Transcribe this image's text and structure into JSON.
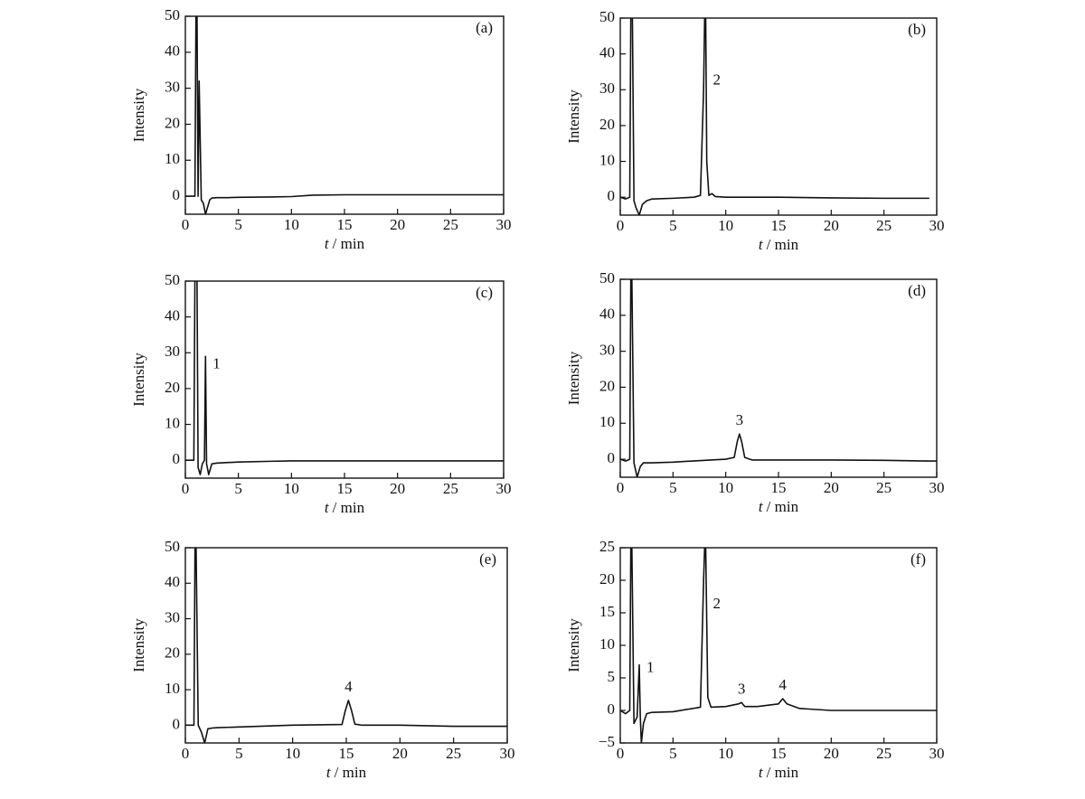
{
  "chart_data": [
    {
      "type": "line",
      "title": "(a)",
      "ylabel": "Intensity",
      "xlabel_symbol": "t",
      "xlabel_unit": "/ min",
      "color": "#111111",
      "xlim": [
        0,
        30
      ],
      "xticks": [
        0,
        5,
        10,
        15,
        20,
        25,
        30
      ],
      "ylim": [
        -5,
        50
      ],
      "yticks": [
        0,
        10,
        20,
        30,
        40,
        50
      ],
      "x": [
        0,
        0.5,
        0.9,
        1.0,
        1.1,
        1.2,
        1.3,
        1.5,
        1.7,
        1.9,
        2.1,
        2.3,
        2.5,
        3,
        4,
        5,
        8,
        10,
        12,
        15,
        20,
        25,
        30
      ],
      "values": [
        0,
        0,
        0,
        50,
        50,
        0,
        32,
        -1,
        -2,
        -5,
        -3,
        -1,
        -0.5,
        -0.4,
        -0.4,
        -0.3,
        -0.2,
        -0.1,
        0.3,
        0.4,
        0.4,
        0.4,
        0.4
      ],
      "annotations": []
    },
    {
      "type": "line",
      "title": "(b)",
      "ylabel": "Intensity",
      "xlabel_symbol": "t",
      "xlabel_unit": "/ min",
      "color": "#111111",
      "xlim": [
        0,
        30
      ],
      "xticks": [
        0,
        5,
        10,
        15,
        20,
        25,
        30
      ],
      "ylim": [
        -5,
        50
      ],
      "yticks": [
        0,
        10,
        20,
        30,
        40,
        50
      ],
      "x": [
        0,
        0.5,
        0.9,
        1.0,
        1.15,
        1.3,
        1.5,
        1.8,
        2.1,
        2.5,
        3,
        5,
        7,
        7.6,
        7.9,
        8.0,
        8.1,
        8.2,
        8.4,
        8.7,
        9,
        10,
        15,
        20,
        25,
        29.3
      ],
      "values": [
        0,
        -0.5,
        0,
        50,
        50,
        -1,
        -3,
        -5,
        -2,
        -1,
        -0.5,
        -0.3,
        0,
        0.5,
        30,
        50,
        50,
        10,
        0.5,
        1,
        0.2,
        0,
        0,
        -0.2,
        -0.3,
        -0.3
      ],
      "annotations": [
        {
          "text": "2",
          "x": 8.1
        }
      ]
    },
    {
      "type": "line",
      "title": "(c)",
      "ylabel": "Intensity",
      "xlabel_symbol": "t",
      "xlabel_unit": "/ min",
      "color": "#111111",
      "xlim": [
        0,
        30
      ],
      "xticks": [
        0,
        5,
        10,
        15,
        20,
        25,
        30
      ],
      "ylim": [
        -5,
        50
      ],
      "yticks": [
        0,
        10,
        20,
        30,
        40,
        50
      ],
      "x": [
        0,
        0.5,
        0.8,
        0.9,
        1.1,
        1.2,
        1.4,
        1.6,
        1.8,
        1.9,
        2.0,
        2.2,
        2.5,
        3,
        5,
        8,
        10,
        15,
        20,
        25,
        30
      ],
      "values": [
        0,
        0,
        0,
        50,
        50,
        -2,
        -4,
        -1,
        0,
        29,
        -1,
        -4,
        -1,
        -0.8,
        -0.5,
        -0.3,
        -0.2,
        -0.2,
        -0.2,
        -0.2,
        -0.2
      ],
      "annotations": [
        {
          "text": "1",
          "x": 1.9
        }
      ]
    },
    {
      "type": "line",
      "title": "(d)",
      "ylabel": "Intensity",
      "xlabel_symbol": "t",
      "xlabel_unit": "/ min",
      "color": "#111111",
      "xlim": [
        0,
        30
      ],
      "xticks": [
        0,
        5,
        10,
        15,
        20,
        25,
        30
      ],
      "ylim": [
        -5,
        50
      ],
      "yticks": [
        0,
        10,
        20,
        30,
        40,
        50
      ],
      "x": [
        0,
        0.5,
        0.9,
        1.0,
        1.1,
        1.3,
        1.6,
        1.9,
        2.2,
        3,
        5,
        8,
        10,
        10.8,
        11.1,
        11.3,
        11.5,
        11.8,
        12.5,
        15,
        20,
        25,
        29.3,
        30
      ],
      "values": [
        0,
        -0.5,
        0,
        50,
        50,
        -1,
        -5,
        -2,
        -1,
        -1,
        -0.8,
        -0.3,
        0,
        0.5,
        5,
        7,
        5,
        0.5,
        -0.2,
        -0.2,
        -0.2,
        -0.3,
        -0.5,
        -0.5
      ],
      "annotations": [
        {
          "text": "3",
          "x": 11.3
        }
      ]
    },
    {
      "type": "line",
      "title": "(e)",
      "ylabel": "Intensity",
      "xlabel_symbol": "t",
      "xlabel_unit": "/ min",
      "color": "#111111",
      "xlim": [
        0,
        30
      ],
      "xticks": [
        0,
        5,
        10,
        15,
        20,
        25,
        30
      ],
      "ylim": [
        -5,
        50
      ],
      "yticks": [
        0,
        10,
        20,
        30,
        40,
        50
      ],
      "x": [
        0,
        0.5,
        0.8,
        0.9,
        1.0,
        1.2,
        1.5,
        1.8,
        2.1,
        2.5,
        3,
        5,
        10,
        14.6,
        14.9,
        15.2,
        15.5,
        15.8,
        16.5,
        20,
        25,
        30
      ],
      "values": [
        0,
        0,
        0,
        50,
        50,
        0,
        -2,
        -5,
        -1,
        -0.8,
        -0.7,
        -0.5,
        0,
        0.2,
        4,
        7,
        4,
        0.3,
        0,
        0,
        -0.3,
        -0.3
      ],
      "annotations": [
        {
          "text": "4",
          "x": 15.2
        }
      ]
    },
    {
      "type": "line",
      "title": "(f)",
      "ylabel": "Intensity",
      "xlabel_symbol": "t",
      "xlabel_unit": "/ min",
      "color": "#111111",
      "xlim": [
        0,
        30
      ],
      "xticks": [
        0,
        5,
        10,
        15,
        20,
        25,
        30
      ],
      "ylim": [
        -5,
        25
      ],
      "yticks": [
        {
          "value": -5,
          "label": "−5"
        },
        0,
        5,
        10,
        15,
        20,
        25
      ],
      "x": [
        0,
        0.5,
        0.9,
        1.0,
        1.1,
        1.3,
        1.6,
        1.8,
        1.9,
        2.0,
        2.2,
        2.5,
        3,
        5,
        7.6,
        7.9,
        8.0,
        8.1,
        8.3,
        8.6,
        10,
        11.2,
        11.5,
        11.8,
        13,
        15,
        15.4,
        15.8,
        17,
        20,
        25,
        30
      ],
      "values": [
        0,
        -0.5,
        0,
        25,
        25,
        -2,
        -1,
        7,
        -1,
        -5,
        -2,
        -0.5,
        -0.3,
        -0.2,
        0.5,
        20,
        25,
        25,
        2,
        0.5,
        0.6,
        1,
        1.2,
        0.6,
        0.6,
        1,
        1.8,
        1,
        0.3,
        0,
        0,
        0
      ],
      "annotations": [
        {
          "text": "1",
          "x": 1.8
        },
        {
          "text": "2",
          "x": 8.1
        },
        {
          "text": "3",
          "x": 11.5
        },
        {
          "text": "4",
          "x": 15.4
        }
      ]
    }
  ]
}
